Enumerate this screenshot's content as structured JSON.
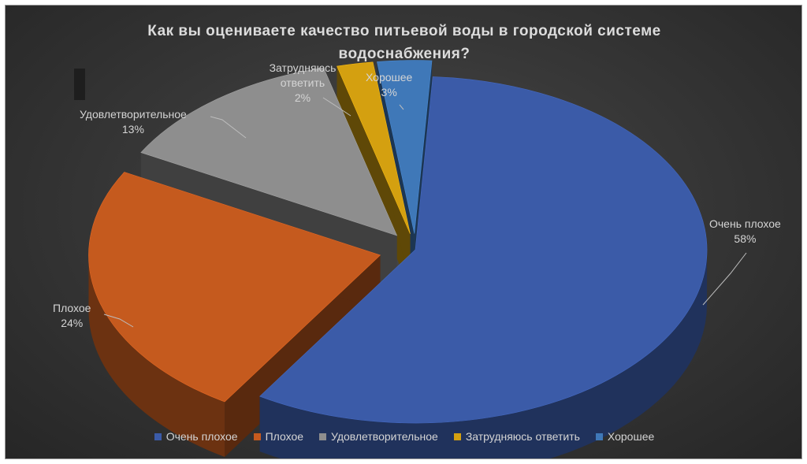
{
  "chart_data": {
    "type": "pie",
    "title": "Как вы оцениваете качество питьевой воды в городской системе водоснабжения?",
    "categories": [
      "Очень плохое",
      "Плохое",
      "Удовлетворительное",
      "Затрудняюсь ответить",
      "Хорошее"
    ],
    "values": [
      58,
      24,
      13,
      2,
      3
    ],
    "value_labels": [
      "58%",
      "24%",
      "13%",
      "2%",
      "3%"
    ],
    "colors": [
      "#3b5ba8",
      "#c55a1e",
      "#8e8e8e",
      "#d4a010",
      "#3f78b8"
    ],
    "legend_position": "bottom",
    "style": "3d-exploded"
  }
}
